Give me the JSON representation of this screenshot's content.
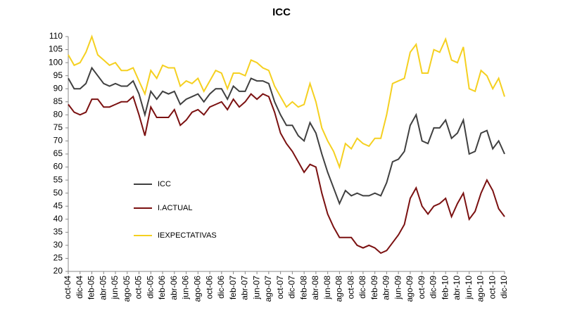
{
  "chart_data": {
    "type": "line",
    "title": "ICC",
    "categories": [
      "oct-04",
      null,
      "dic-04",
      null,
      "feb-05",
      null,
      "abr-05",
      null,
      "jun-05",
      null,
      "ago-05",
      null,
      "oct-05",
      null,
      "dic-05",
      null,
      "feb-06",
      null,
      "abr-06",
      null,
      "jun-06",
      null,
      "ago-06",
      null,
      "oct-06",
      null,
      "dic-06",
      null,
      "feb-07",
      null,
      "abr-07",
      null,
      "jun-07",
      null,
      "ago-07",
      null,
      "oct-07",
      null,
      "dic-07",
      null,
      "feb-08",
      null,
      "abr-08",
      null,
      "jun-08",
      null,
      "ago-08",
      null,
      "oct-08",
      null,
      "dic-08",
      null,
      "feb-09",
      null,
      "abr-09",
      null,
      "jun-09",
      null,
      "ago-09",
      null,
      "oct-09",
      null,
      "dic-09",
      null,
      "feb-10",
      null,
      "abr-10",
      null,
      "jun-10",
      null,
      "ago-10",
      null,
      "oct-10",
      null,
      "dic-10"
    ],
    "series": [
      {
        "name": "ICC",
        "color": "#404040",
        "values": [
          94,
          90,
          90,
          92,
          98,
          95,
          92,
          91,
          92,
          91,
          91,
          93,
          88,
          80,
          89,
          86,
          89,
          88,
          89,
          84,
          86,
          87,
          88,
          85,
          88,
          90,
          90,
          86,
          91,
          89,
          89,
          94,
          93,
          93,
          92,
          85,
          80,
          76,
          76,
          72,
          70,
          77,
          73,
          65,
          58,
          52,
          46,
          51,
          49,
          50,
          49,
          49,
          50,
          49,
          54,
          62,
          63,
          66,
          76,
          80,
          70,
          69,
          75,
          75,
          78,
          71,
          73,
          78,
          65,
          66,
          73,
          74,
          67,
          70,
          65
        ]
      },
      {
        "name": "I.ACTUAL",
        "color": "#7b1111",
        "values": [
          84,
          81,
          80,
          81,
          86,
          86,
          83,
          83,
          84,
          85,
          85,
          87,
          80,
          72,
          83,
          79,
          79,
          79,
          82,
          76,
          78,
          81,
          82,
          80,
          83,
          84,
          85,
          82,
          86,
          83,
          85,
          88,
          86,
          88,
          87,
          81,
          73,
          69,
          66,
          62,
          58,
          61,
          60,
          50,
          42,
          37,
          33,
          33,
          33,
          30,
          29,
          30,
          29,
          27,
          28,
          31,
          34,
          38,
          48,
          52,
          45,
          42,
          45,
          46,
          48,
          41,
          46,
          50,
          40,
          43,
          50,
          55,
          51,
          44,
          41
        ]
      },
      {
        "name": "IEXPECTATIVAS",
        "color": "#f5d020",
        "values": [
          103,
          99,
          100,
          104,
          110,
          103,
          101,
          99,
          100,
          97,
          97,
          98,
          93,
          88,
          97,
          94,
          99,
          98,
          98,
          91,
          93,
          92,
          94,
          89,
          93,
          97,
          96,
          90,
          96,
          96,
          95,
          101,
          100,
          98,
          97,
          91,
          87,
          83,
          85,
          83,
          84,
          92,
          85,
          75,
          70,
          66,
          60,
          69,
          67,
          71,
          69,
          68,
          71,
          71,
          80,
          92,
          93,
          94,
          104,
          107,
          96,
          96,
          105,
          104,
          109,
          101,
          100,
          106,
          90,
          89,
          97,
          95,
          90,
          94,
          87
        ]
      }
    ],
    "ylim": [
      20,
      110
    ],
    "yticks": [
      20,
      25,
      30,
      35,
      40,
      45,
      50,
      55,
      60,
      65,
      70,
      75,
      80,
      85,
      90,
      95,
      100,
      105,
      110
    ]
  }
}
